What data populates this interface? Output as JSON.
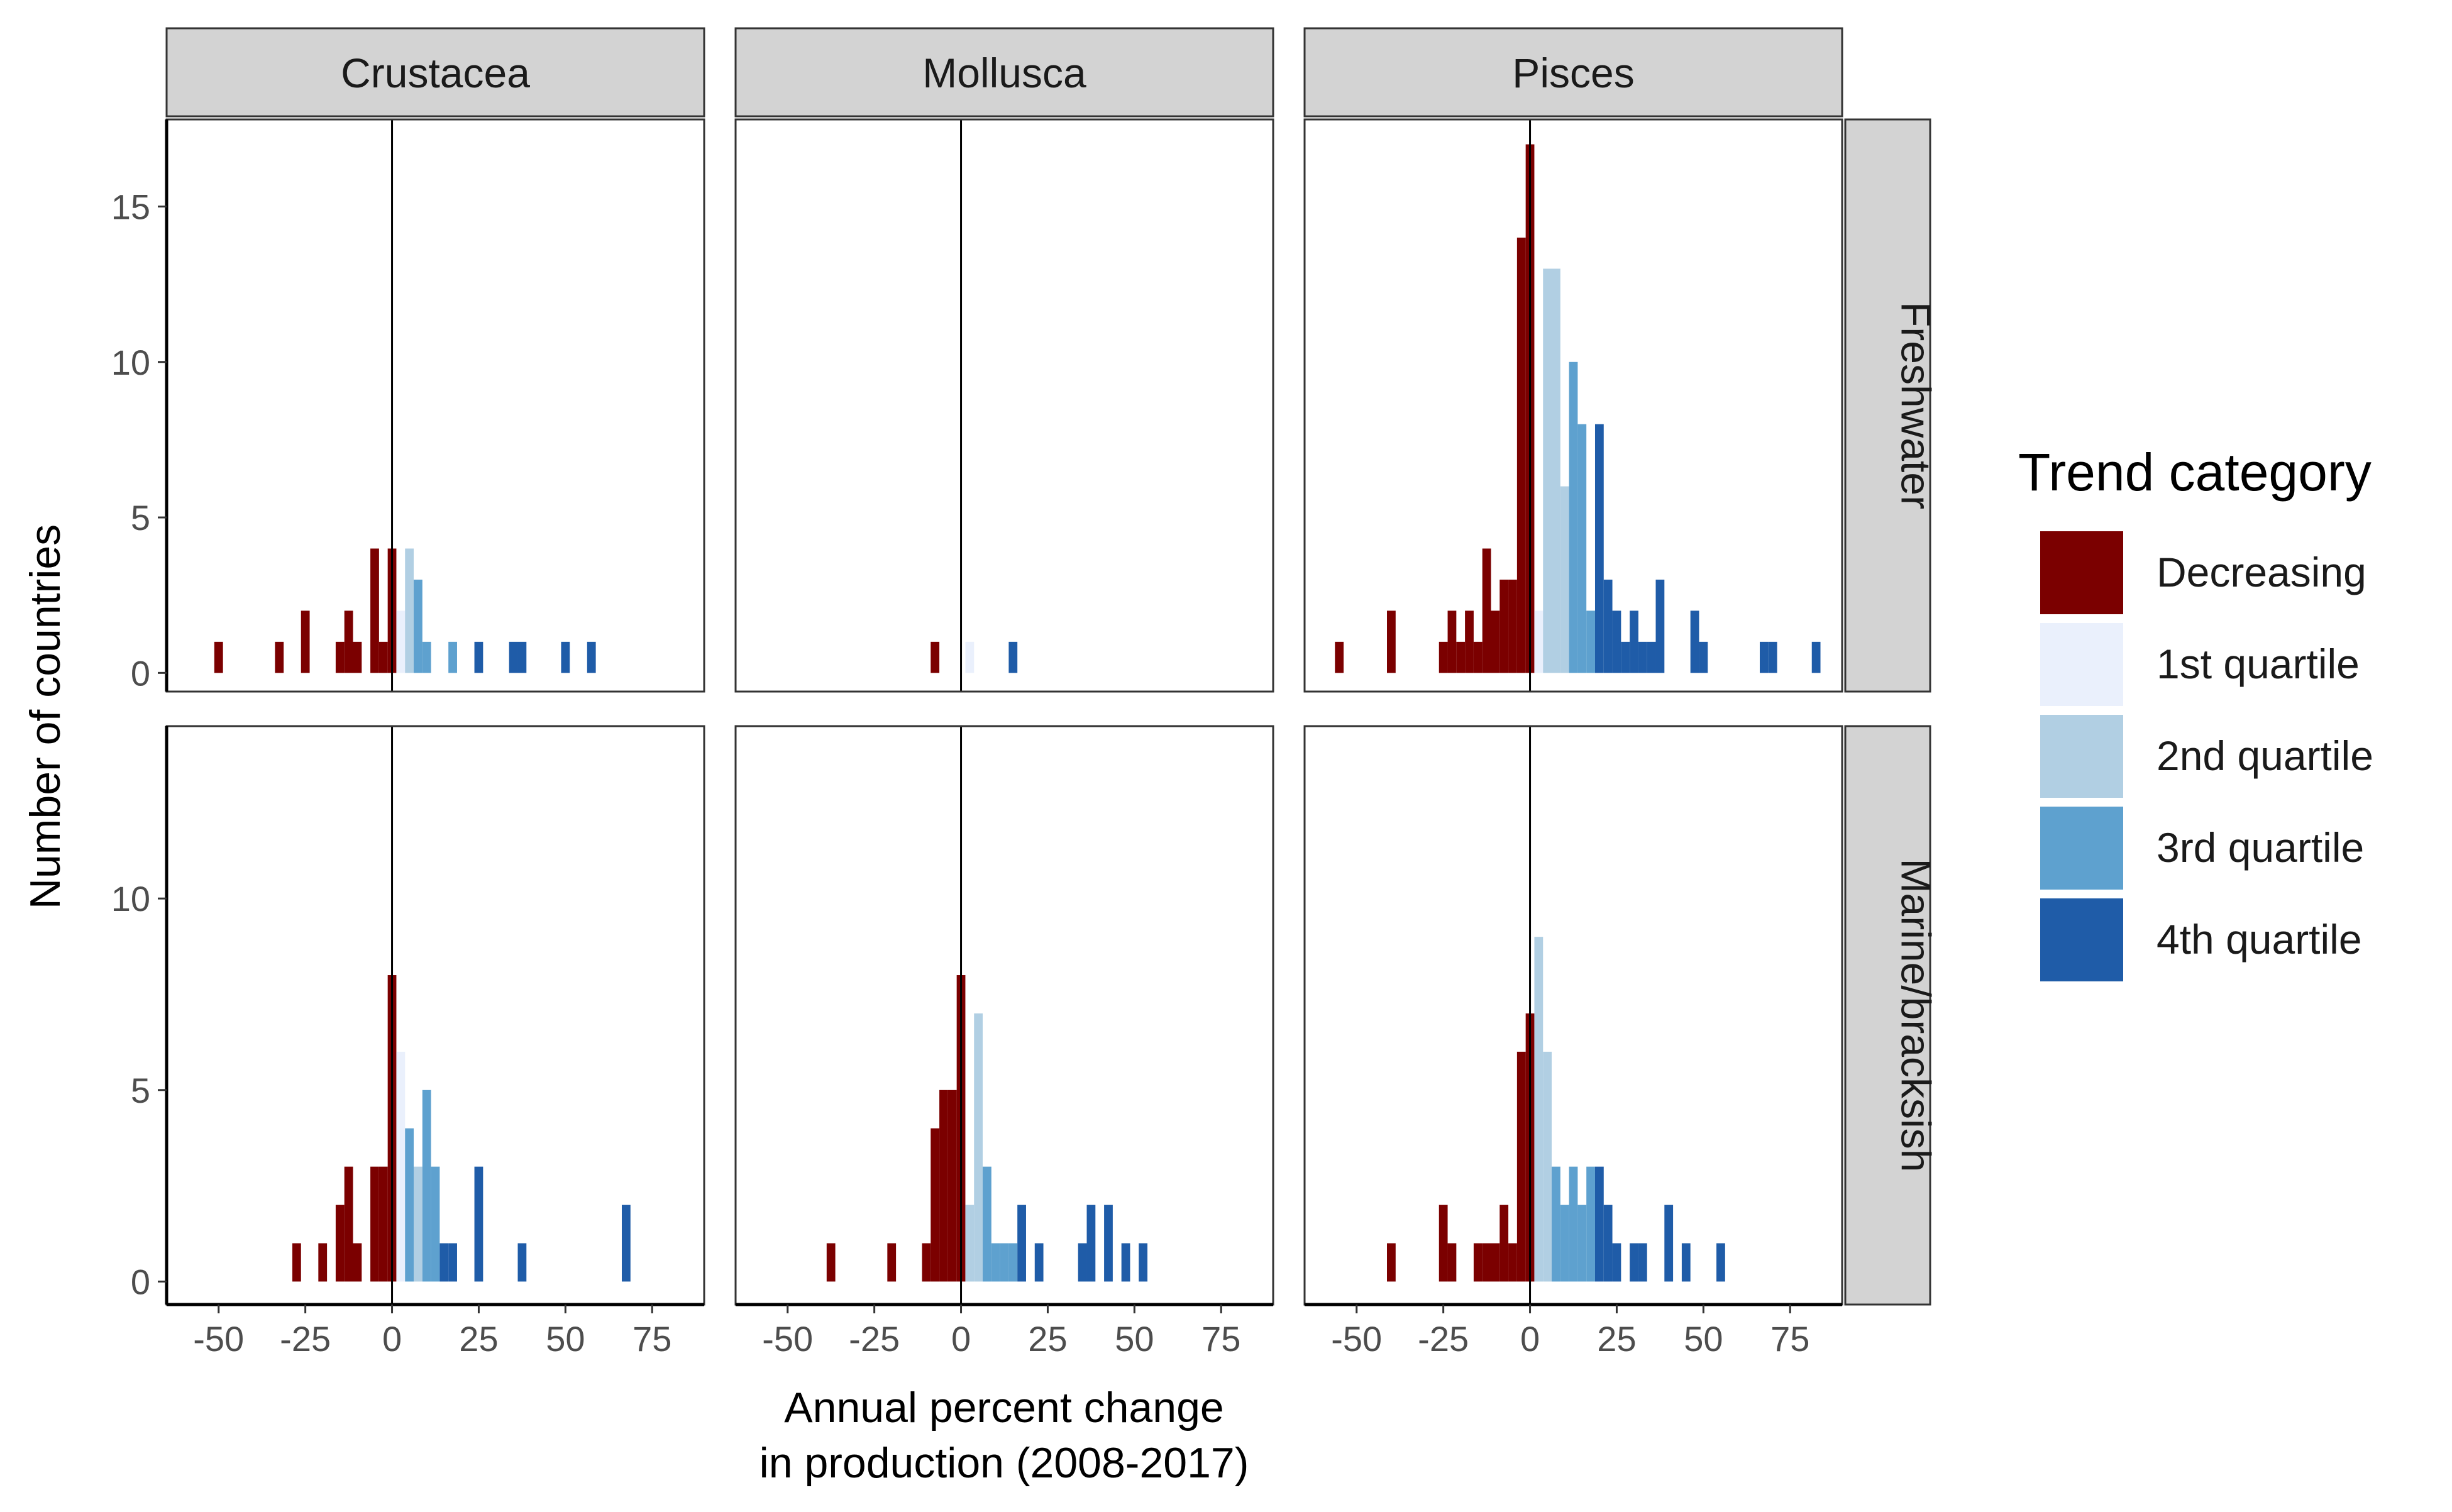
{
  "chart_data": {
    "type": "bar",
    "xlabel_lines": [
      "Annual percent change",
      "in production (2008-2017)"
    ],
    "ylabel": "Number of countries",
    "facet_columns": [
      "Crustacea",
      "Mollusca",
      "Pisces"
    ],
    "facet_rows": [
      "Freshwater",
      "Marine/bracksish"
    ],
    "x_ticks": [
      "-50",
      "-25",
      "0",
      "25",
      "50",
      "75"
    ],
    "xlim": [
      -65,
      90
    ],
    "bin_width": 2.5,
    "rows": [
      {
        "name": "Freshwater",
        "ylim": [
          -0.6,
          17.8
        ],
        "y_ticks": [
          {
            "value": 0,
            "label": "0"
          },
          {
            "value": 5,
            "label": "5"
          },
          {
            "value": 10,
            "label": "10"
          },
          {
            "value": 15,
            "label": "15"
          }
        ]
      },
      {
        "name": "Marine/bracksish",
        "ylim": [
          -0.6,
          14.5
        ],
        "y_ticks": [
          {
            "value": 0,
            "label": "0"
          },
          {
            "value": 5,
            "label": "5"
          },
          {
            "value": 10,
            "label": "10"
          }
        ]
      }
    ],
    "legend": {
      "title": "Trend category",
      "position": "right",
      "entries": [
        {
          "key": "dec",
          "label": "Decreasing",
          "color": "#7b0000"
        },
        {
          "key": "q1",
          "label": "1st quartile",
          "color": "#eaf0fc"
        },
        {
          "key": "q2",
          "label": "2nd quartile",
          "color": "#b1cfe3"
        },
        {
          "key": "q3",
          "label": "3rd quartile",
          "color": "#5ea1cf"
        },
        {
          "key": "q4",
          "label": "4th quartile",
          "color": "#1f5ca8"
        }
      ]
    },
    "panels": [
      {
        "row": 0,
        "col": 0,
        "bars": [
          {
            "x": -50,
            "y": 1,
            "cat": "dec"
          },
          {
            "x": -32.5,
            "y": 1,
            "cat": "dec"
          },
          {
            "x": -25,
            "y": 2,
            "cat": "dec"
          },
          {
            "x": -15,
            "y": 1,
            "cat": "dec"
          },
          {
            "x": -12.5,
            "y": 2,
            "cat": "dec"
          },
          {
            "x": -10,
            "y": 1,
            "cat": "dec"
          },
          {
            "x": -5,
            "y": 4,
            "cat": "dec"
          },
          {
            "x": -2.5,
            "y": 1,
            "cat": "dec"
          },
          {
            "x": 0,
            "y": 4,
            "cat": "dec"
          },
          {
            "x": 2.5,
            "y": 2,
            "cat": "q1"
          },
          {
            "x": 5,
            "y": 4,
            "cat": "q2"
          },
          {
            "x": 7.5,
            "y": 3,
            "cat": "q3"
          },
          {
            "x": 10,
            "y": 1,
            "cat": "q3"
          },
          {
            "x": 17.5,
            "y": 1,
            "cat": "q3"
          },
          {
            "x": 25,
            "y": 1,
            "cat": "q4"
          },
          {
            "x": 35,
            "y": 1,
            "cat": "q4"
          },
          {
            "x": 37.5,
            "y": 1,
            "cat": "q4"
          },
          {
            "x": 50,
            "y": 1,
            "cat": "q4"
          },
          {
            "x": 57.5,
            "y": 1,
            "cat": "q4"
          }
        ]
      },
      {
        "row": 0,
        "col": 1,
        "bars": [
          {
            "x": -7.5,
            "y": 1,
            "cat": "dec"
          },
          {
            "x": 2.5,
            "y": 1,
            "cat": "q1"
          },
          {
            "x": 15,
            "y": 1,
            "cat": "q4"
          }
        ]
      },
      {
        "row": 0,
        "col": 2,
        "bars": [
          {
            "x": -55,
            "y": 1,
            "cat": "dec"
          },
          {
            "x": -40,
            "y": 2,
            "cat": "dec"
          },
          {
            "x": -25,
            "y": 1,
            "cat": "dec"
          },
          {
            "x": -22.5,
            "y": 2,
            "cat": "dec"
          },
          {
            "x": -20,
            "y": 1,
            "cat": "dec"
          },
          {
            "x": -17.5,
            "y": 2,
            "cat": "dec"
          },
          {
            "x": -15,
            "y": 1,
            "cat": "dec"
          },
          {
            "x": -12.5,
            "y": 4,
            "cat": "dec"
          },
          {
            "x": -10,
            "y": 2,
            "cat": "dec"
          },
          {
            "x": -7.5,
            "y": 3,
            "cat": "dec"
          },
          {
            "x": -5,
            "y": 3,
            "cat": "dec"
          },
          {
            "x": -2.5,
            "y": 14,
            "cat": "dec"
          },
          {
            "x": 0,
            "y": 17,
            "cat": "dec"
          },
          {
            "x": 2.5,
            "y": 2,
            "cat": "q1"
          },
          {
            "x": 5,
            "y": 13,
            "cat": "q2"
          },
          {
            "x": 7.5,
            "y": 13,
            "cat": "q2"
          },
          {
            "x": 10,
            "y": 6,
            "cat": "q2"
          },
          {
            "x": 12.5,
            "y": 10,
            "cat": "q3"
          },
          {
            "x": 15,
            "y": 8,
            "cat": "q3"
          },
          {
            "x": 17.5,
            "y": 2,
            "cat": "q3"
          },
          {
            "x": 20,
            "y": 8,
            "cat": "q4"
          },
          {
            "x": 22.5,
            "y": 3,
            "cat": "q4"
          },
          {
            "x": 25,
            "y": 2,
            "cat": "q4"
          },
          {
            "x": 27.5,
            "y": 1,
            "cat": "q4"
          },
          {
            "x": 30,
            "y": 2,
            "cat": "q4"
          },
          {
            "x": 32.5,
            "y": 1,
            "cat": "q4"
          },
          {
            "x": 35,
            "y": 1,
            "cat": "q4"
          },
          {
            "x": 37.5,
            "y": 3,
            "cat": "q4"
          },
          {
            "x": 47.5,
            "y": 2,
            "cat": "q4"
          },
          {
            "x": 50,
            "y": 1,
            "cat": "q4"
          },
          {
            "x": 67.5,
            "y": 1,
            "cat": "q4"
          },
          {
            "x": 70,
            "y": 1,
            "cat": "q4"
          },
          {
            "x": 82.5,
            "y": 1,
            "cat": "q4"
          }
        ]
      },
      {
        "row": 1,
        "col": 0,
        "bars": [
          {
            "x": -27.5,
            "y": 1,
            "cat": "dec"
          },
          {
            "x": -20,
            "y": 1,
            "cat": "dec"
          },
          {
            "x": -15,
            "y": 2,
            "cat": "dec"
          },
          {
            "x": -12.5,
            "y": 3,
            "cat": "dec"
          },
          {
            "x": -10,
            "y": 1,
            "cat": "dec"
          },
          {
            "x": -5,
            "y": 3,
            "cat": "dec"
          },
          {
            "x": -2.5,
            "y": 3,
            "cat": "dec"
          },
          {
            "x": 0,
            "y": 8,
            "cat": "dec"
          },
          {
            "x": 2.5,
            "y": 6,
            "cat": "q1"
          },
          {
            "x": 5,
            "y": 4,
            "cat": "q3"
          },
          {
            "x": 7.5,
            "y": 3,
            "cat": "q2"
          },
          {
            "x": 10,
            "y": 5,
            "cat": "q3"
          },
          {
            "x": 12.5,
            "y": 3,
            "cat": "q3"
          },
          {
            "x": 15,
            "y": 1,
            "cat": "q4"
          },
          {
            "x": 17.5,
            "y": 1,
            "cat": "q4"
          },
          {
            "x": 25,
            "y": 3,
            "cat": "q4"
          },
          {
            "x": 37.5,
            "y": 1,
            "cat": "q4"
          },
          {
            "x": 67.5,
            "y": 2,
            "cat": "q4"
          }
        ]
      },
      {
        "row": 1,
        "col": 1,
        "bars": [
          {
            "x": -37.5,
            "y": 1,
            "cat": "dec"
          },
          {
            "x": -20,
            "y": 1,
            "cat": "dec"
          },
          {
            "x": -10,
            "y": 1,
            "cat": "dec"
          },
          {
            "x": -7.5,
            "y": 4,
            "cat": "dec"
          },
          {
            "x": -5,
            "y": 5,
            "cat": "dec"
          },
          {
            "x": -2.5,
            "y": 5,
            "cat": "dec"
          },
          {
            "x": 0,
            "y": 8,
            "cat": "dec"
          },
          {
            "x": 2.5,
            "y": 2,
            "cat": "q2"
          },
          {
            "x": 5,
            "y": 7,
            "cat": "q2"
          },
          {
            "x": 7.5,
            "y": 3,
            "cat": "q3"
          },
          {
            "x": 10,
            "y": 1,
            "cat": "q3"
          },
          {
            "x": 12.5,
            "y": 1,
            "cat": "q3"
          },
          {
            "x": 15,
            "y": 1,
            "cat": "q3"
          },
          {
            "x": 17.5,
            "y": 2,
            "cat": "q4"
          },
          {
            "x": 22.5,
            "y": 1,
            "cat": "q4"
          },
          {
            "x": 35,
            "y": 1,
            "cat": "q4"
          },
          {
            "x": 37.5,
            "y": 2,
            "cat": "q4"
          },
          {
            "x": 42.5,
            "y": 2,
            "cat": "q4"
          },
          {
            "x": 47.5,
            "y": 1,
            "cat": "q4"
          },
          {
            "x": 52.5,
            "y": 1,
            "cat": "q4"
          }
        ]
      },
      {
        "row": 1,
        "col": 2,
        "bars": [
          {
            "x": -40,
            "y": 1,
            "cat": "dec"
          },
          {
            "x": -25,
            "y": 2,
            "cat": "dec"
          },
          {
            "x": -22.5,
            "y": 1,
            "cat": "dec"
          },
          {
            "x": -15,
            "y": 1,
            "cat": "dec"
          },
          {
            "x": -12.5,
            "y": 1,
            "cat": "dec"
          },
          {
            "x": -10,
            "y": 1,
            "cat": "dec"
          },
          {
            "x": -7.5,
            "y": 2,
            "cat": "dec"
          },
          {
            "x": -5,
            "y": 1,
            "cat": "dec"
          },
          {
            "x": -2.5,
            "y": 6,
            "cat": "dec"
          },
          {
            "x": 0,
            "y": 7,
            "cat": "dec"
          },
          {
            "x": 2.5,
            "y": 9,
            "cat": "q2"
          },
          {
            "x": 5,
            "y": 6,
            "cat": "q2"
          },
          {
            "x": 7.5,
            "y": 3,
            "cat": "q3"
          },
          {
            "x": 10,
            "y": 2,
            "cat": "q3"
          },
          {
            "x": 12.5,
            "y": 3,
            "cat": "q3"
          },
          {
            "x": 15,
            "y": 2,
            "cat": "q3"
          },
          {
            "x": 17.5,
            "y": 3,
            "cat": "q3"
          },
          {
            "x": 20,
            "y": 3,
            "cat": "q4"
          },
          {
            "x": 22.5,
            "y": 2,
            "cat": "q4"
          },
          {
            "x": 25,
            "y": 1,
            "cat": "q4"
          },
          {
            "x": 30,
            "y": 1,
            "cat": "q4"
          },
          {
            "x": 32.5,
            "y": 1,
            "cat": "q4"
          },
          {
            "x": 40,
            "y": 2,
            "cat": "q4"
          },
          {
            "x": 45,
            "y": 1,
            "cat": "q4"
          },
          {
            "x": 55,
            "y": 1,
            "cat": "q4"
          }
        ]
      }
    ]
  }
}
